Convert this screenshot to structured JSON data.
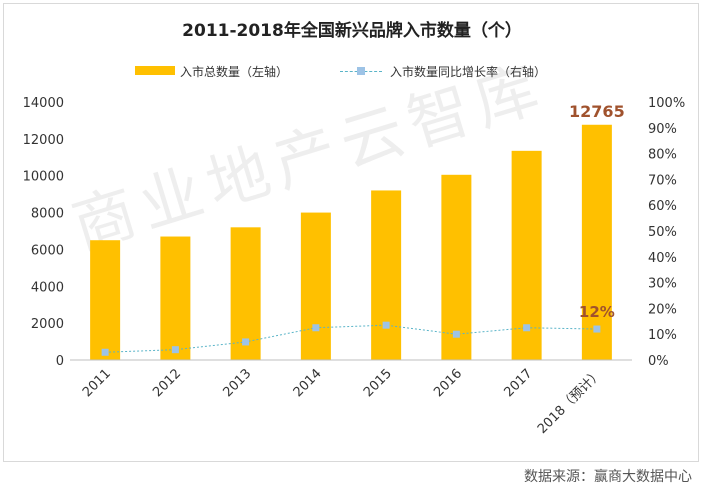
{
  "chart_data": {
    "type": "bar+line",
    "title": "2011-2018年全国新兴品牌入市数量（个）",
    "categories": [
      "2011",
      "2012",
      "2013",
      "2014",
      "2015",
      "2016",
      "2017",
      "2018（预计）"
    ],
    "series": [
      {
        "name": "入市总数量（左轴）",
        "type": "bar",
        "axis": "left",
        "values": [
          6500,
          6700,
          7200,
          8000,
          9200,
          10050,
          11350,
          12765
        ]
      },
      {
        "name": "入市数量同比增长率（右轴）",
        "type": "line",
        "axis": "right",
        "values": [
          3,
          4,
          7,
          12.5,
          13.5,
          10,
          12.5,
          12
        ]
      }
    ],
    "left_axis": {
      "min": 0,
      "max": 14000,
      "step": 2000,
      "ticks": [
        "0",
        "2000",
        "4000",
        "6000",
        "8000",
        "10000",
        "12000",
        "14000"
      ]
    },
    "right_axis": {
      "min": 0,
      "max": 100,
      "step": 10,
      "ticks": [
        "0%",
        "10%",
        "20%",
        "30%",
        "40%",
        "50%",
        "60%",
        "70%",
        "80%",
        "90%",
        "100%"
      ]
    },
    "annotations": {
      "bar_label": "12765",
      "line_label": "12%"
    }
  },
  "colors": {
    "bar": "#FFC000",
    "line": "#5AB4C8",
    "marker": "#9DC3E6",
    "annotation": "#A0522D"
  },
  "watermark": "商业地产云智库",
  "source": "数据来源：赢商大数据中心"
}
